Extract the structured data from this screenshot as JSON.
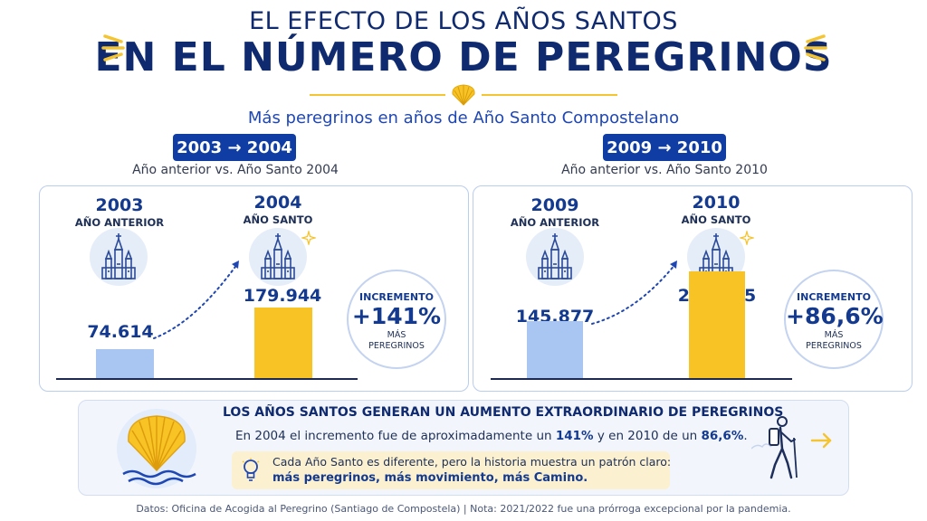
{
  "header": {
    "title_line1": "EL EFECTO DE LOS AÑOS SANTOS",
    "title_line2": "EN EL NÚMERO DE PEREGRINOS",
    "subtitle": "Más peregrinos en años de Año Santo Compostelano"
  },
  "periods": [
    {
      "badge": "2003 → 2004",
      "caption": "Año anterior vs. Año Santo 2004",
      "prev_year": "2003",
      "prev_label": "AÑO ANTERIOR",
      "prev_value_text": "74.614",
      "holy_year": "2004",
      "holy_label": "AÑO SANTO",
      "holy_value_text": "179.944",
      "increment_label": "INCREMENTO",
      "increment_value": "+141%",
      "increment_sub1": "MÁS",
      "increment_sub2": "PEREGRINOS"
    },
    {
      "badge": "2009 → 2010",
      "caption": "Año anterior vs. Año Santo 2010",
      "prev_year": "2009",
      "prev_label": "AÑO ANTERIOR",
      "prev_value_text": "145.877",
      "holy_year": "2010",
      "holy_label": "AÑO SANTO",
      "holy_value_text": "272.135",
      "increment_label": "INCREMENTO",
      "increment_value": "+86,6%",
      "increment_sub1": "MÁS",
      "increment_sub2": "PEREGRINOS"
    }
  ],
  "chart_data": [
    {
      "type": "bar",
      "categories": [
        "2003",
        "2004"
      ],
      "values": [
        74614,
        179944
      ],
      "colors": [
        "#a9c6f3",
        "#f8c425"
      ]
    },
    {
      "type": "bar",
      "categories": [
        "2009",
        "2010"
      ],
      "values": [
        145877,
        272135
      ],
      "colors": [
        "#a9c6f3",
        "#f8c425"
      ]
    }
  ],
  "summary": {
    "title": "LOS AÑOS SANTOS GENERAN UN AUMENTO EXTRAORDINARIO DE PEREGRINOS",
    "line_a": "En 2004 el incremento fue de aproximadamente un ",
    "line_b": "141%",
    "line_c": " y en 2010 de un ",
    "line_d": "86,6%",
    "line_e": ".",
    "note_1": "Cada Año Santo es diferente, pero la historia muestra un patrón claro:",
    "note_2": "más peregrinos, más movimiento, más Camino."
  },
  "footer": {
    "text": "Datos: Oficina de Acogida al Peregrino (Santiago de Compostela)   |   Nota: 2021/2022 fue una prórroga excepcional por la pandemia."
  },
  "icons": [
    "sparkle-icon",
    "scallop-shell-icon",
    "cathedral-icon",
    "lightbulb-icon",
    "hiker-icon",
    "arrow-right-icon"
  ],
  "colors": {
    "navy": "#0f2a6e",
    "badge_blue": "#0f3da3",
    "bar_prev": "#a9c6f3",
    "bar_holy": "#f8c425",
    "accent_yellow": "#f4c431"
  }
}
